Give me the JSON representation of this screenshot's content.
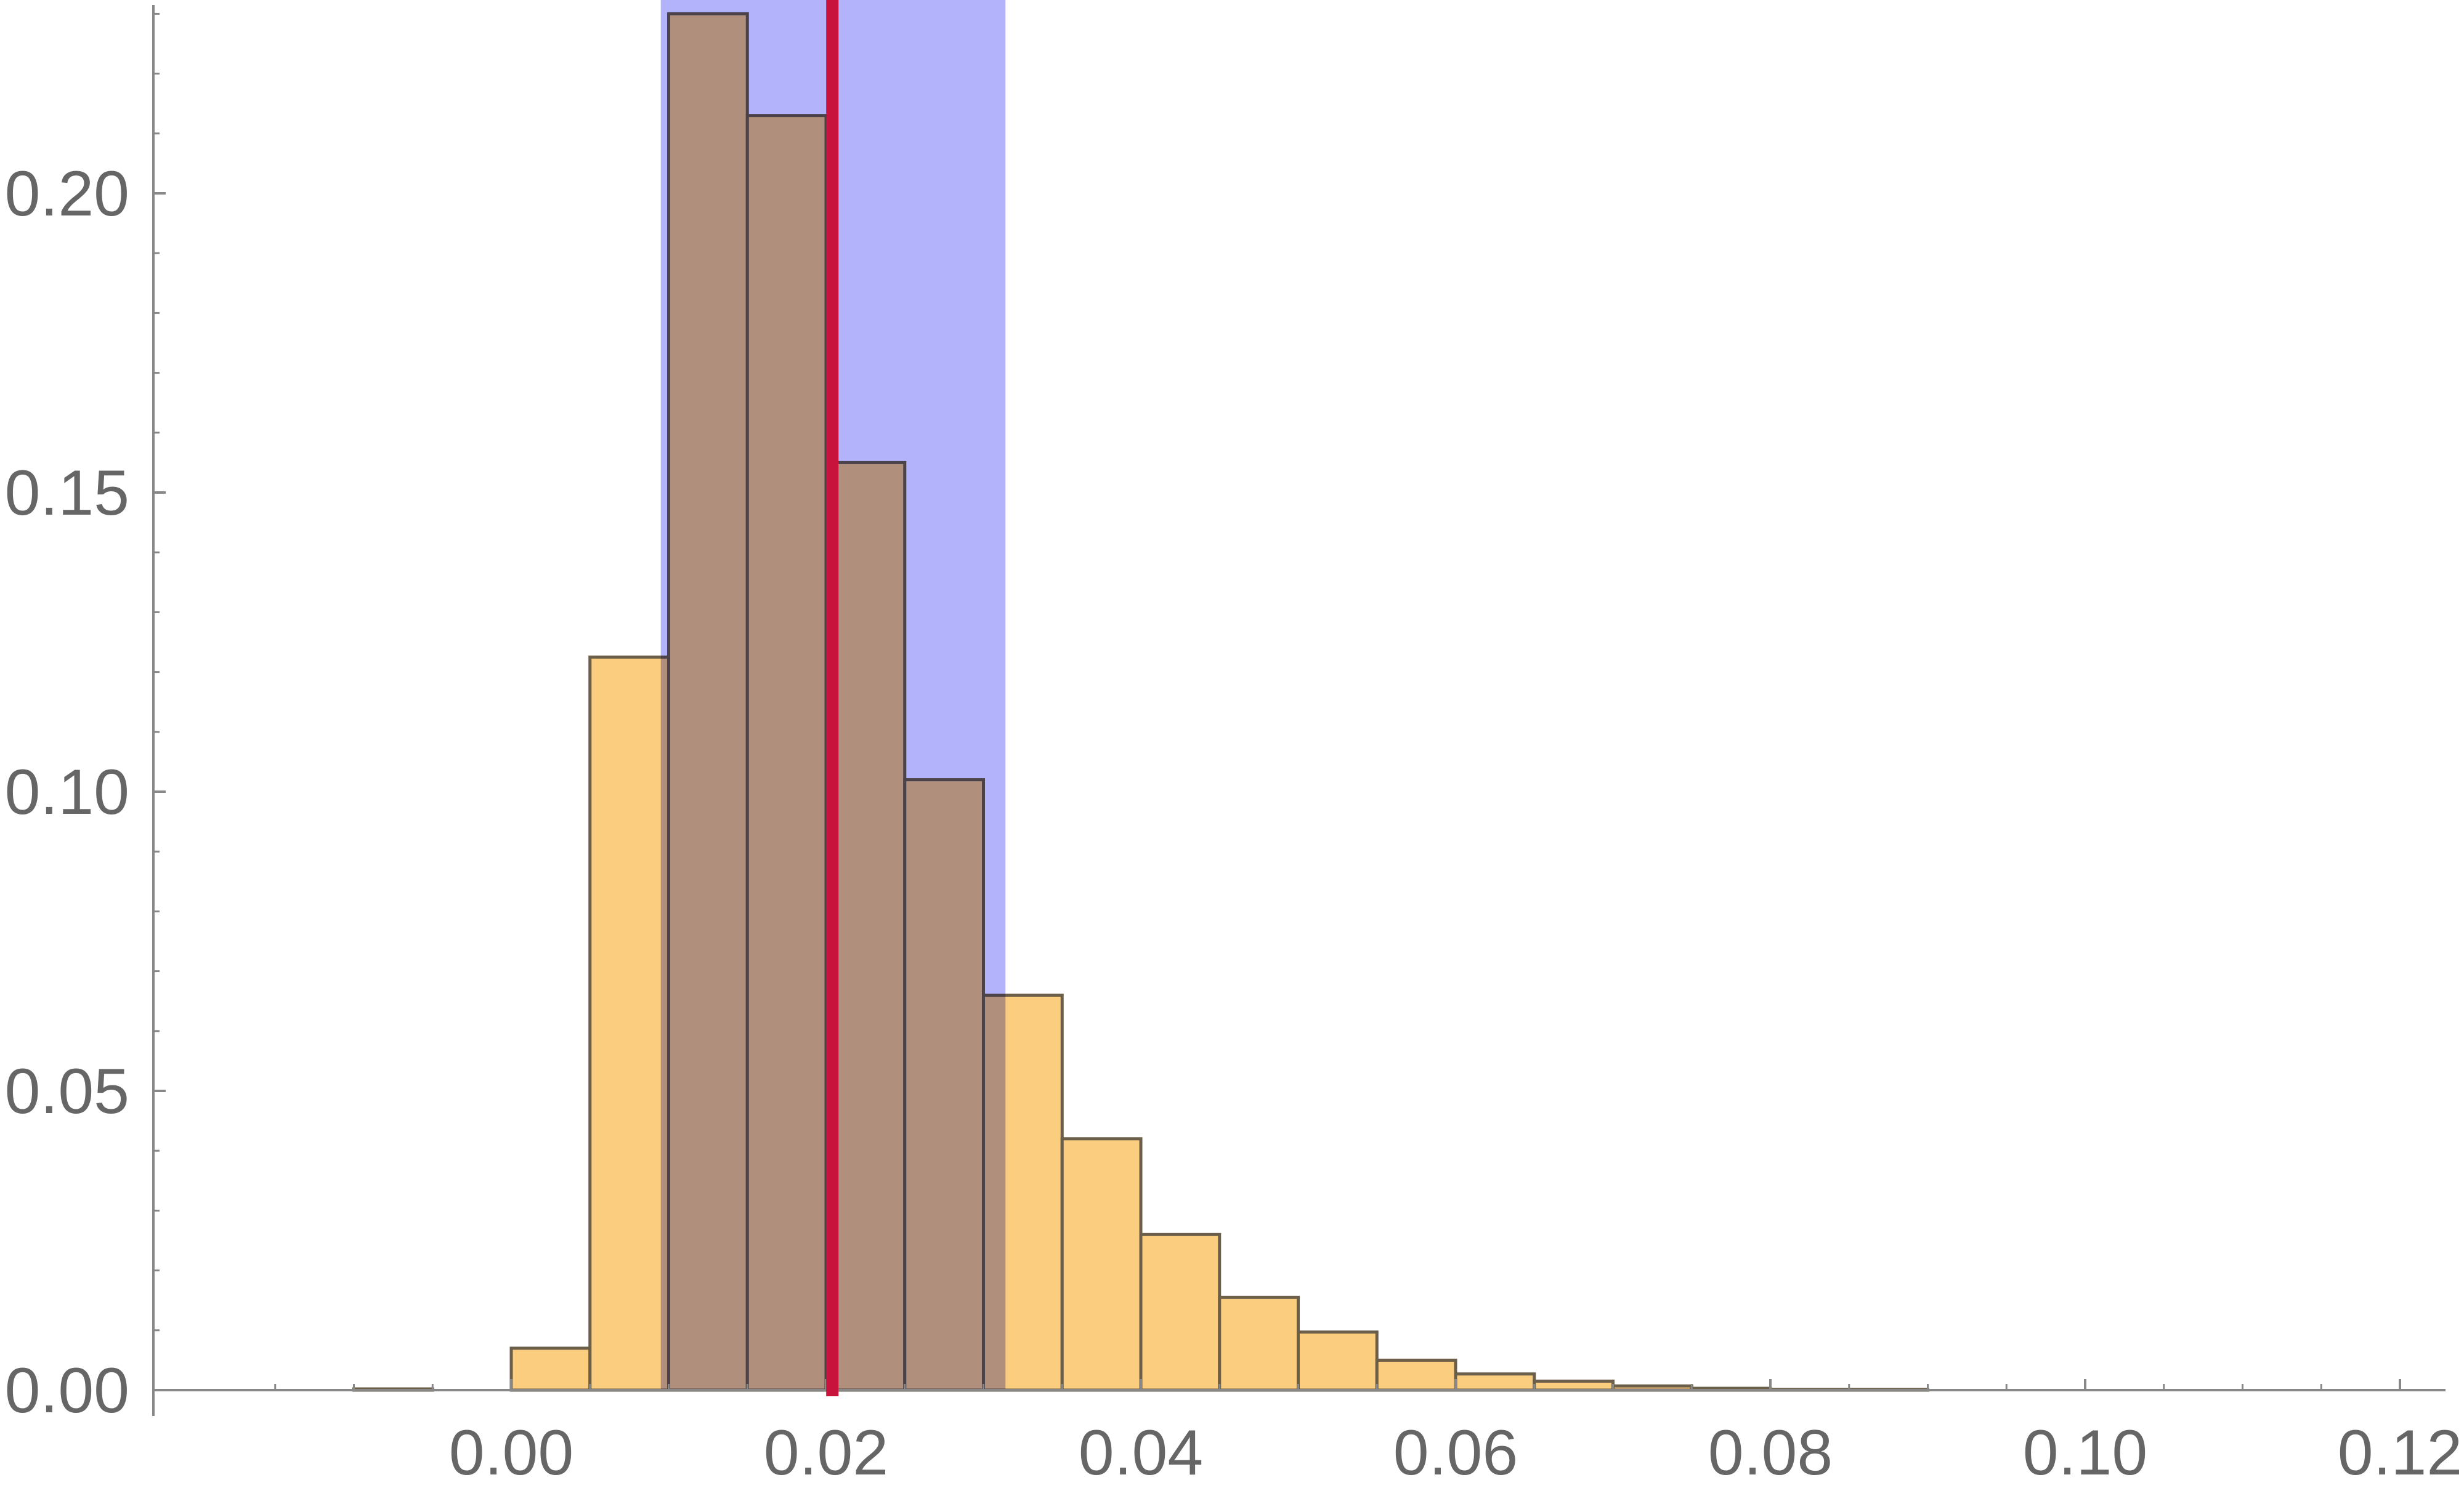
{
  "chart_data": {
    "type": "bar",
    "subtype": "histogram",
    "title": "",
    "xlabel": "",
    "ylabel": "",
    "xlim": [
      -0.016,
      0.123
    ],
    "ylim": [
      0,
      0.232
    ],
    "grid": false,
    "bin_width": 0.005,
    "bins": [
      {
        "x0": -0.015,
        "x1": -0.01,
        "value": 0.0
      },
      {
        "x0": -0.01,
        "x1": -0.005,
        "value": 0.0002
      },
      {
        "x0": -0.005,
        "x1": 0.0,
        "value": 0.0
      },
      {
        "x0": 0.0,
        "x1": 0.005,
        "value": 0.007
      },
      {
        "x0": 0.005,
        "x1": 0.01,
        "value": 0.1225
      },
      {
        "x0": 0.01,
        "x1": 0.015,
        "value": 0.23
      },
      {
        "x0": 0.015,
        "x1": 0.02,
        "value": 0.213
      },
      {
        "x0": 0.02,
        "x1": 0.025,
        "value": 0.155
      },
      {
        "x0": 0.025,
        "x1": 0.03,
        "value": 0.102
      },
      {
        "x0": 0.03,
        "x1": 0.035,
        "value": 0.066
      },
      {
        "x0": 0.035,
        "x1": 0.04,
        "value": 0.042
      },
      {
        "x0": 0.04,
        "x1": 0.045,
        "value": 0.026
      },
      {
        "x0": 0.045,
        "x1": 0.05,
        "value": 0.0155
      },
      {
        "x0": 0.05,
        "x1": 0.055,
        "value": 0.0097
      },
      {
        "x0": 0.055,
        "x1": 0.06,
        "value": 0.005
      },
      {
        "x0": 0.06,
        "x1": 0.065,
        "value": 0.0027
      },
      {
        "x0": 0.065,
        "x1": 0.07,
        "value": 0.0015
      },
      {
        "x0": 0.07,
        "x1": 0.075,
        "value": 0.0007
      },
      {
        "x0": 0.075,
        "x1": 0.08,
        "value": 0.0003
      },
      {
        "x0": 0.08,
        "x1": 0.085,
        "value": 0.0001
      },
      {
        "x0": 0.085,
        "x1": 0.09,
        "value": 0.0001
      },
      {
        "x0": 0.09,
        "x1": 0.095,
        "value": 0.0
      },
      {
        "x0": 0.095,
        "x1": 0.1,
        "value": 0.0
      },
      {
        "x0": 0.1,
        "x1": 0.105,
        "value": 0.0
      },
      {
        "x0": 0.105,
        "x1": 0.11,
        "value": 0.0
      },
      {
        "x0": 0.11,
        "x1": 0.115,
        "value": 0.0
      },
      {
        "x0": 0.115,
        "x1": 0.12,
        "value": 0.0
      }
    ],
    "shaded_band": {
      "x0": 0.0095,
      "x1": 0.0314,
      "color": "#b3b3fb"
    },
    "reference_line": {
      "x": 0.0204,
      "color": "#c8143c"
    },
    "x_ticks": [
      {
        "value": 0.0,
        "label": "0.00"
      },
      {
        "value": 0.02,
        "label": "0.02"
      },
      {
        "value": 0.04,
        "label": "0.04"
      },
      {
        "value": 0.06,
        "label": "0.06"
      },
      {
        "value": 0.08,
        "label": "0.08"
      },
      {
        "value": 0.1,
        "label": "0.10"
      },
      {
        "value": 0.12,
        "label": "0.12"
      }
    ],
    "x_minor_step": 0.005,
    "y_ticks": [
      {
        "value": 0.0,
        "label": "0.00"
      },
      {
        "value": 0.05,
        "label": "0.05"
      },
      {
        "value": 0.1,
        "label": "0.10"
      },
      {
        "value": 0.15,
        "label": "0.15"
      },
      {
        "value": 0.2,
        "label": "0.20"
      }
    ],
    "y_minor_step": 0.01,
    "colors": {
      "bar_fill": "#fbcd7e",
      "bar_stroke": "#6b5f4a",
      "axis": "#888888",
      "tick_text": "#666666"
    }
  }
}
